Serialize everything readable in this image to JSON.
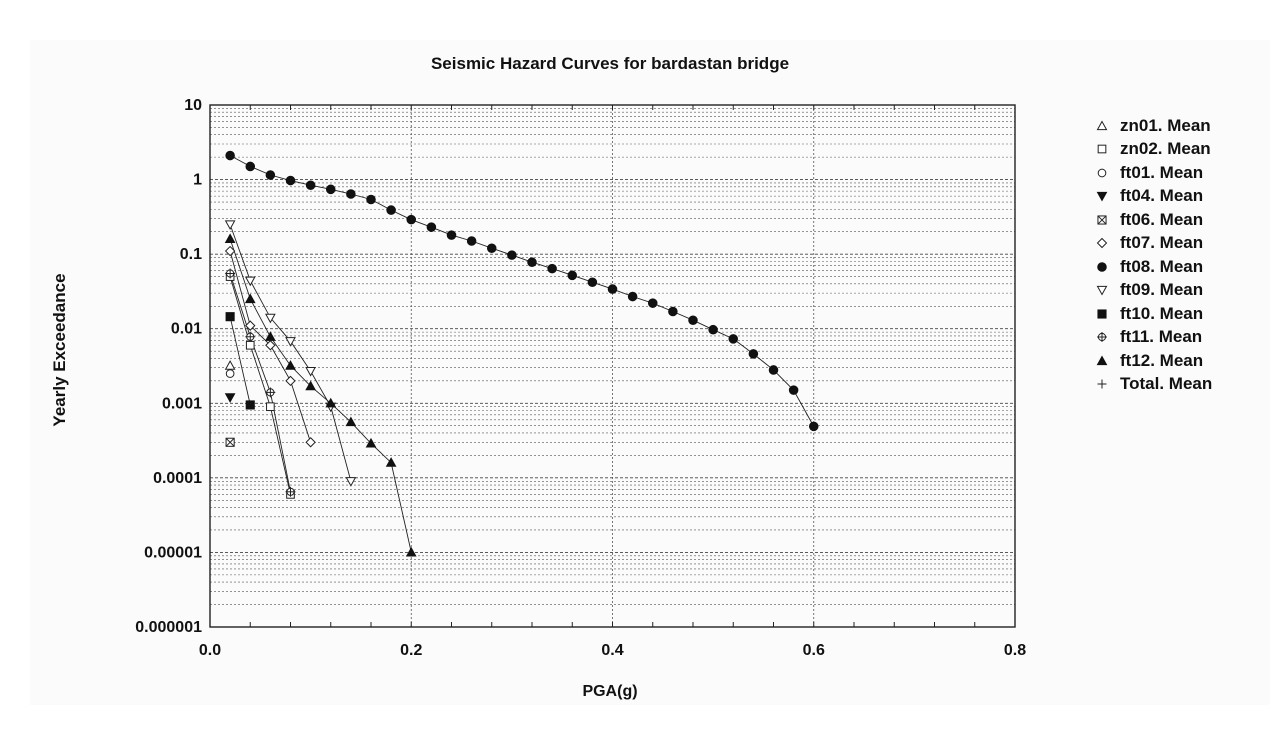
{
  "chart_data": {
    "type": "line",
    "title": "Seismic Hazard Curves for bardastan bridge",
    "xlabel": "PGA(g)",
    "ylabel": "Yearly Exceedance",
    "xlim": [
      0.0,
      0.8
    ],
    "ylim": [
      1e-06,
      10
    ],
    "yscale": "log",
    "xticks": [
      0.0,
      0.2,
      0.4,
      0.6,
      0.8
    ],
    "xtick_labels": [
      "0.0",
      "0.2",
      "0.4",
      "0.6",
      "0.8"
    ],
    "yticks": [
      10,
      1,
      0.1,
      0.01,
      0.001,
      0.0001,
      1e-05,
      1e-06
    ],
    "ytick_labels": [
      "10",
      "1",
      "0.1",
      "0.01",
      "0.001",
      "0.0001",
      "0.00001",
      "0.000001"
    ],
    "grid": true,
    "legend_position": "right",
    "series": [
      {
        "name": "zn01. Mean",
        "marker": "triangle-open",
        "points": [
          [
            0.02,
            0.0032
          ]
        ]
      },
      {
        "name": "zn02. Mean",
        "marker": "square-open",
        "points": [
          [
            0.02,
            0.05
          ],
          [
            0.04,
            0.006
          ],
          [
            0.06,
            0.0009
          ],
          [
            0.08,
            6e-05
          ]
        ]
      },
      {
        "name": "ft01. Mean",
        "marker": "circle-open",
        "points": [
          [
            0.02,
            0.0025
          ]
        ]
      },
      {
        "name": "ft04. Mean",
        "marker": "triangle-down-filled",
        "points": [
          [
            0.02,
            0.0012
          ]
        ]
      },
      {
        "name": "ft06. Mean",
        "marker": "square-x",
        "points": [
          [
            0.02,
            0.0003
          ]
        ]
      },
      {
        "name": "ft07. Mean",
        "marker": "diamond-open",
        "points": [
          [
            0.02,
            0.11
          ],
          [
            0.04,
            0.011
          ],
          [
            0.06,
            0.006
          ],
          [
            0.08,
            0.002
          ],
          [
            0.1,
            0.0003
          ]
        ]
      },
      {
        "name": "ft08. Mean",
        "marker": "circle-filled",
        "points": [
          [
            0.02,
            2.1
          ],
          [
            0.04,
            1.5
          ],
          [
            0.06,
            1.15
          ],
          [
            0.08,
            0.97
          ],
          [
            0.1,
            0.84
          ],
          [
            0.12,
            0.74
          ],
          [
            0.14,
            0.64
          ],
          [
            0.16,
            0.54
          ],
          [
            0.18,
            0.39
          ],
          [
            0.2,
            0.29
          ],
          [
            0.22,
            0.23
          ],
          [
            0.24,
            0.18
          ],
          [
            0.26,
            0.15
          ],
          [
            0.28,
            0.12
          ],
          [
            0.3,
            0.097
          ],
          [
            0.32,
            0.078
          ],
          [
            0.34,
            0.064
          ],
          [
            0.36,
            0.052
          ],
          [
            0.38,
            0.042
          ],
          [
            0.4,
            0.034
          ],
          [
            0.42,
            0.027
          ],
          [
            0.44,
            0.022
          ],
          [
            0.46,
            0.017
          ],
          [
            0.48,
            0.013
          ],
          [
            0.5,
            0.0097
          ],
          [
            0.52,
            0.0073
          ],
          [
            0.54,
            0.0046
          ],
          [
            0.56,
            0.0028
          ],
          [
            0.58,
            0.0015
          ],
          [
            0.6,
            0.00049
          ]
        ]
      },
      {
        "name": "ft09. Mean",
        "marker": "triangle-down-open",
        "points": [
          [
            0.02,
            0.25
          ],
          [
            0.04,
            0.044
          ],
          [
            0.06,
            0.014
          ],
          [
            0.08,
            0.0068
          ],
          [
            0.1,
            0.0027
          ],
          [
            0.12,
            0.0009
          ],
          [
            0.14,
            9e-05
          ]
        ]
      },
      {
        "name": "ft10. Mean",
        "marker": "square-filled",
        "points": [
          [
            0.02,
            0.0145
          ],
          [
            0.04,
            0.00095
          ]
        ]
      },
      {
        "name": "ft11. Mean",
        "marker": "circle-plus",
        "points": [
          [
            0.02,
            0.055
          ],
          [
            0.04,
            0.0078
          ],
          [
            0.06,
            0.0014
          ],
          [
            0.08,
            6.5e-05
          ]
        ]
      },
      {
        "name": "ft12. Mean",
        "marker": "triangle-filled",
        "points": [
          [
            0.02,
            0.16
          ],
          [
            0.04,
            0.025
          ],
          [
            0.06,
            0.0078
          ],
          [
            0.08,
            0.0032
          ],
          [
            0.1,
            0.0017
          ],
          [
            0.12,
            0.001
          ],
          [
            0.14,
            0.00056
          ],
          [
            0.16,
            0.00029
          ],
          [
            0.18,
            0.00016
          ],
          [
            0.2,
            1e-05
          ]
        ]
      },
      {
        "name": "Total. Mean",
        "marker": "plus",
        "points": []
      }
    ]
  }
}
